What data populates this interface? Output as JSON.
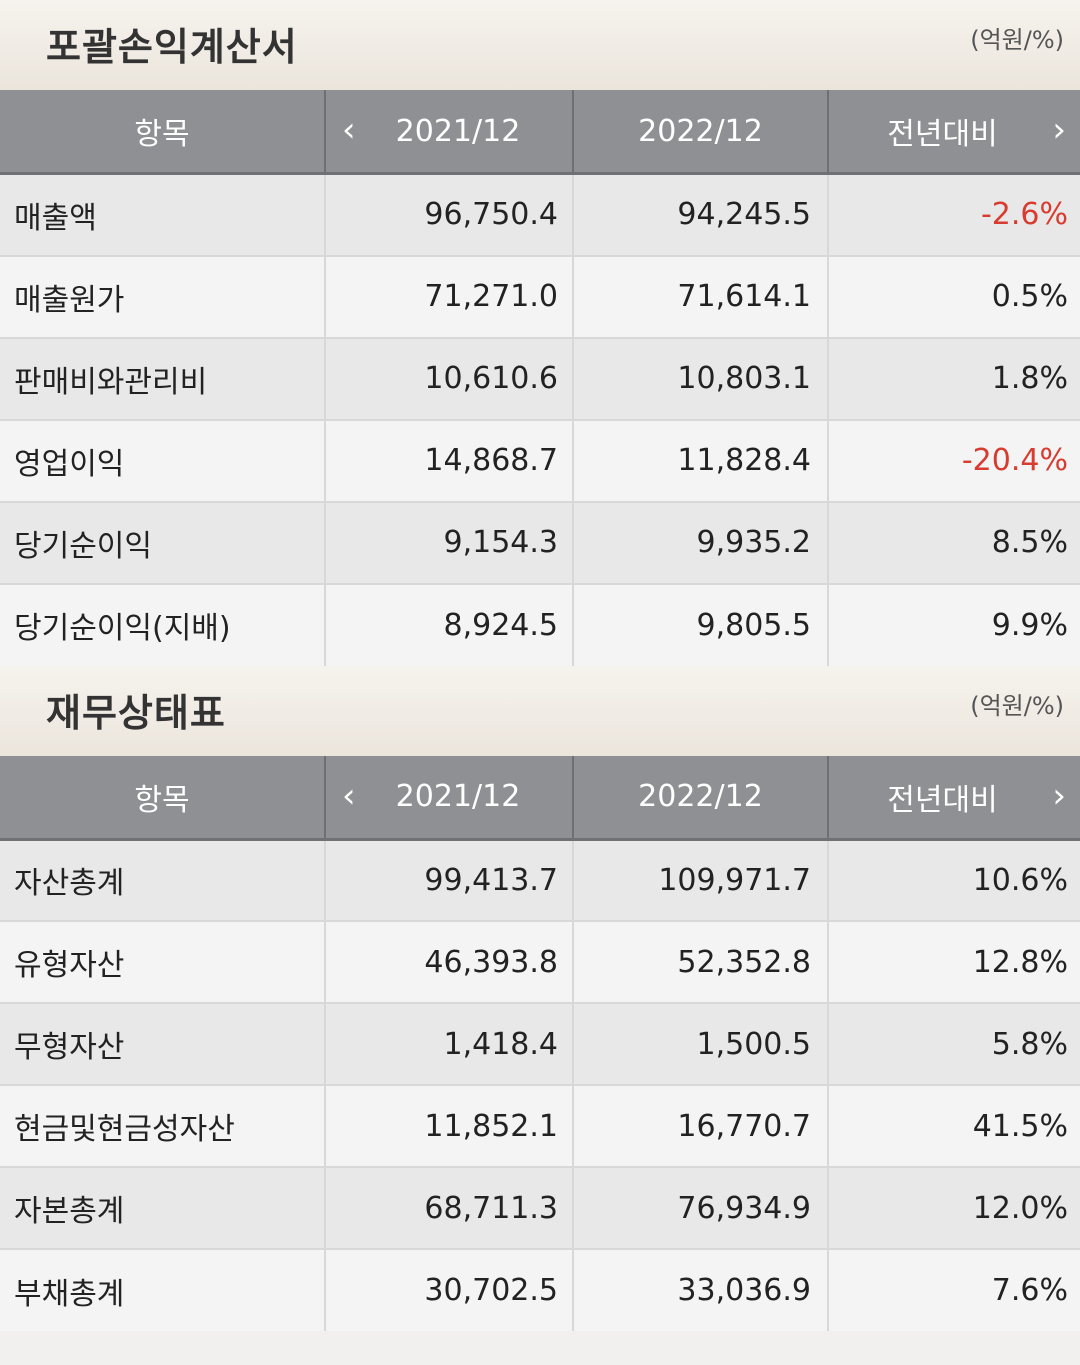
{
  "income": {
    "title": "포괄손익계산서",
    "unit": "(억원/%)",
    "headers": [
      "항목",
      "2021/12",
      "2022/12",
      "전년대비"
    ],
    "rows": [
      {
        "item": "매출액",
        "y2021": "96,750.4",
        "y2022": "94,245.5",
        "yoy": "-2.6%"
      },
      {
        "item": "매출원가",
        "y2021": "71,271.0",
        "y2022": "71,614.1",
        "yoy": "0.5%"
      },
      {
        "item": "판매비와관리비",
        "y2021": "10,610.6",
        "y2022": "10,803.1",
        "yoy": "1.8%"
      },
      {
        "item": "영업이익",
        "y2021": "14,868.7",
        "y2022": "11,828.4",
        "yoy": "-20.4%"
      },
      {
        "item": "당기순이익",
        "y2021": "9,154.3",
        "y2022": "9,935.2",
        "yoy": "8.5%"
      },
      {
        "item": "당기순이익(지배)",
        "y2021": "8,924.5",
        "y2022": "9,805.5",
        "yoy": "9.9%"
      }
    ]
  },
  "balance": {
    "title": "재무상태표",
    "unit": "(억원/%)",
    "headers": [
      "항목",
      "2021/12",
      "2022/12",
      "전년대비"
    ],
    "rows": [
      {
        "item": "자산총계",
        "y2021": "99,413.7",
        "y2022": "109,971.7",
        "yoy": "10.6%"
      },
      {
        "item": "유형자산",
        "y2021": "46,393.8",
        "y2022": "52,352.8",
        "yoy": "12.8%"
      },
      {
        "item": "무형자산",
        "y2021": "1,418.4",
        "y2022": "1,500.5",
        "yoy": "5.8%"
      },
      {
        "item": "현금및현금성자산",
        "y2021": "11,852.1",
        "y2022": "16,770.7",
        "yoy": "41.5%"
      },
      {
        "item": "자본총계",
        "y2021": "68,711.3",
        "y2022": "76,934.9",
        "yoy": "12.0%"
      },
      {
        "item": "부채총계",
        "y2021": "30,702.5",
        "y2022": "33,036.9",
        "yoy": "7.6%"
      }
    ]
  },
  "icons": {
    "prev": "chevron-left-icon",
    "next": "chevron-right-icon"
  },
  "colors": {
    "negative": "#d83b2f",
    "header_bg": "#8e9093"
  }
}
